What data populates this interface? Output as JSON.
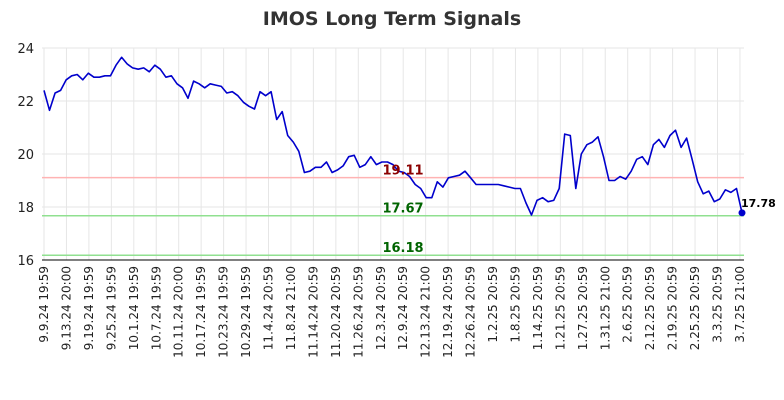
{
  "chart_data": {
    "type": "line",
    "title": "IMOS Long Term Signals",
    "xlabel": "",
    "ylabel": "",
    "ylim": [
      16,
      24
    ],
    "yticks": [
      "16",
      "18",
      "20",
      "22",
      "24"
    ],
    "grid": true,
    "x_ticks": [
      "9.9.24 19:59",
      "9.13.24 20:00",
      "9.19.24 19:59",
      "9.25.24 19:59",
      "10.1.24 19:59",
      "10.7.24 19:59",
      "10.11.24 20:00",
      "10.17.24 19:59",
      "10.23.24 19:59",
      "10.29.24 19:59",
      "11.4.24 20:59",
      "11.8.24 21:00",
      "11.14.24 20:59",
      "11.20.24 20:59",
      "11.26.24 20:59",
      "12.3.24 20:59",
      "12.9.24 20:59",
      "12.13.24 21:00",
      "12.19.24 20:59",
      "12.26.24 20:59",
      "1.2.25 20:59",
      "1.8.25 20:59",
      "1.14.25 20:59",
      "1.21.25 20:59",
      "1.27.25 20:59",
      "1.31.25 21:00",
      "2.6.25 20:59",
      "2.12.25 20:59",
      "2.19.25 20:59",
      "2.25.25 20:59",
      "3.3.25 20:59",
      "3.7.25 21:00"
    ],
    "series": [
      {
        "color": "#0000cc",
        "values": [
          22.4,
          21.65,
          22.3,
          22.4,
          22.8,
          22.95,
          23.0,
          22.8,
          23.05,
          22.9,
          22.9,
          22.95,
          22.95,
          23.35,
          23.65,
          23.4,
          23.25,
          23.2,
          23.25,
          23.1,
          23.35,
          23.2,
          22.9,
          22.95,
          22.65,
          22.5,
          22.1,
          22.75,
          22.65,
          22.5,
          22.65,
          22.6,
          22.55,
          22.3,
          22.35,
          22.2,
          21.95,
          21.8,
          21.7,
          22.35,
          22.2,
          22.35,
          21.3,
          21.6,
          20.7,
          20.45,
          20.1,
          19.3,
          19.35,
          19.5,
          19.5,
          19.7,
          19.3,
          19.4,
          19.55,
          19.9,
          19.95,
          19.5,
          19.6,
          19.9,
          19.6,
          19.7,
          19.7,
          19.6,
          19.35,
          19.3,
          19.15,
          18.85,
          18.7,
          18.35,
          18.35,
          18.95,
          18.75,
          19.1,
          19.15,
          19.2,
          19.35,
          19.1,
          18.85,
          18.85,
          18.85,
          18.85,
          18.85,
          18.8,
          18.75,
          18.7,
          18.7,
          18.15,
          17.7,
          18.25,
          18.35,
          18.2,
          18.25,
          18.7,
          20.75,
          20.7,
          18.7,
          20.0,
          20.35,
          20.45,
          20.65,
          19.9,
          19.0,
          19.0,
          19.15,
          19.05,
          19.35,
          19.8,
          19.9,
          19.6,
          20.35,
          20.55,
          20.25,
          20.7,
          20.9,
          20.25,
          20.6,
          19.8,
          18.95,
          18.5,
          18.6,
          18.2,
          18.3,
          18.65,
          18.55,
          18.7,
          17.78
        ]
      }
    ],
    "levels": [
      {
        "value": 19.11,
        "label": "19.11",
        "line_color": "#ffb3b3",
        "label_color": "#8b0000"
      },
      {
        "value": 17.67,
        "label": "17.67",
        "line_color": "#90e090",
        "label_color": "#006400"
      },
      {
        "value": 16.18,
        "label": "16.18",
        "line_color": "#90e090",
        "label_color": "#006400"
      }
    ],
    "last_value_label": "17.78",
    "bottom_line_value": 16.0
  }
}
